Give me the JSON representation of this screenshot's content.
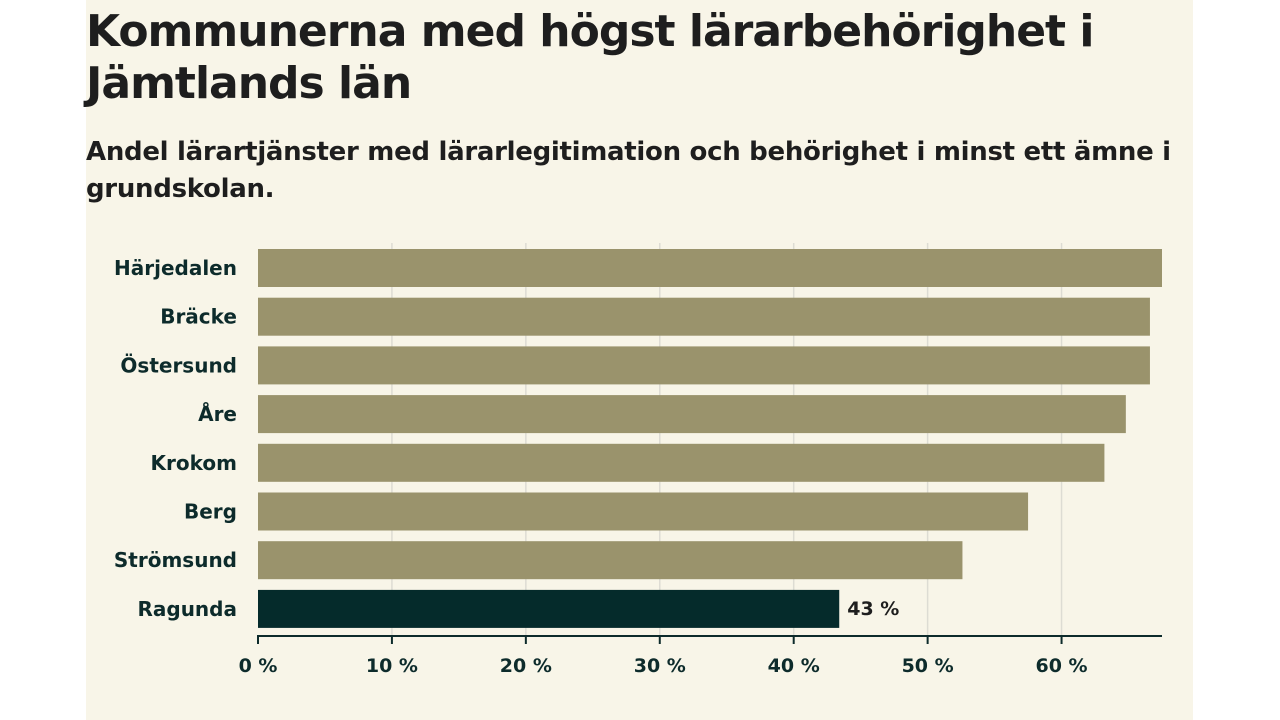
{
  "title": "Kommunerna med högst lärarbehörighet i Jämtlands län",
  "subtitle": "Andel lärartjänster med lärarlegitimation och behörighet i minst ett ämne i grundskolan.",
  "colors": {
    "background": "#f8f5e8",
    "bar": "#9a936c",
    "bar_highlight": "#052b2b",
    "grid": "#dddcd3",
    "axis": "#0d2b2b"
  },
  "chart_data": {
    "type": "bar",
    "orientation": "horizontal",
    "title": "Kommunerna med högst lärarbehörighet i Jämtlands län",
    "subtitle": "Andel lärartjänster med lärarlegitimation och behörighet i minst ett ämne i grundskolan.",
    "categories": [
      "Härjedalen",
      "Bräcke",
      "Östersund",
      "Åre",
      "Krokom",
      "Berg",
      "Strömsund",
      "Ragunda"
    ],
    "values": [
      67.5,
      66.6,
      66.6,
      64.8,
      63.2,
      57.5,
      52.6,
      43.4
    ],
    "highlight": "Ragunda",
    "data_labels": [
      {
        "category": "Ragunda",
        "label": "43 %"
      }
    ],
    "xlim": [
      0,
      67.5
    ],
    "xticks": [
      0,
      10,
      20,
      30,
      40,
      50,
      60
    ],
    "xtick_labels": [
      "0 %",
      "10 %",
      "20 %",
      "30 %",
      "40 %",
      "50 %",
      "60 %"
    ],
    "xlabel": "",
    "ylabel": "",
    "grid": true,
    "legend": "none"
  }
}
